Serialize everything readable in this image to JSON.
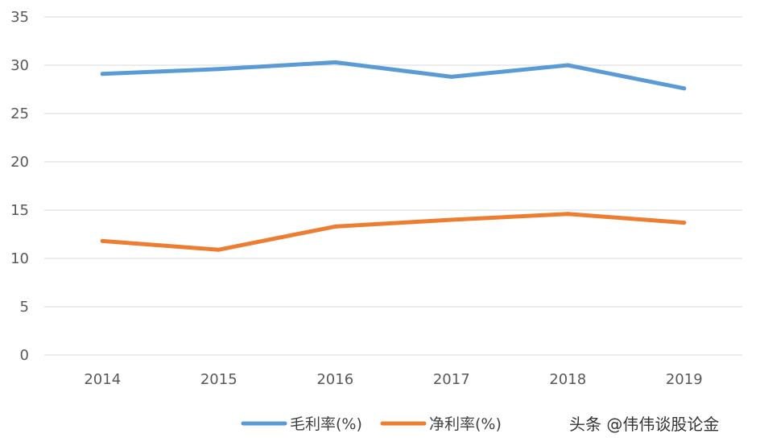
{
  "chart_data": {
    "type": "line",
    "categories": [
      "2014",
      "2015",
      "2016",
      "2017",
      "2018",
      "2019"
    ],
    "series": [
      {
        "name": "毛利率(%)",
        "values": [
          29.1,
          29.6,
          30.3,
          28.8,
          30.0,
          27.6
        ],
        "color": "#5B9BD5"
      },
      {
        "name": "净利率(%)",
        "values": [
          11.8,
          10.9,
          13.3,
          14.0,
          14.6,
          13.7
        ],
        "color": "#ED7D31"
      }
    ],
    "ylim": [
      0,
      35
    ],
    "yticks": [
      "0",
      "5",
      "10",
      "15",
      "20",
      "25",
      "30",
      "35"
    ],
    "grid": true,
    "legend_position": "bottom"
  },
  "watermark": "头条 @伟伟谈股论金",
  "colors": {
    "grid": "#D9D9D9",
    "text": "#595959"
  }
}
